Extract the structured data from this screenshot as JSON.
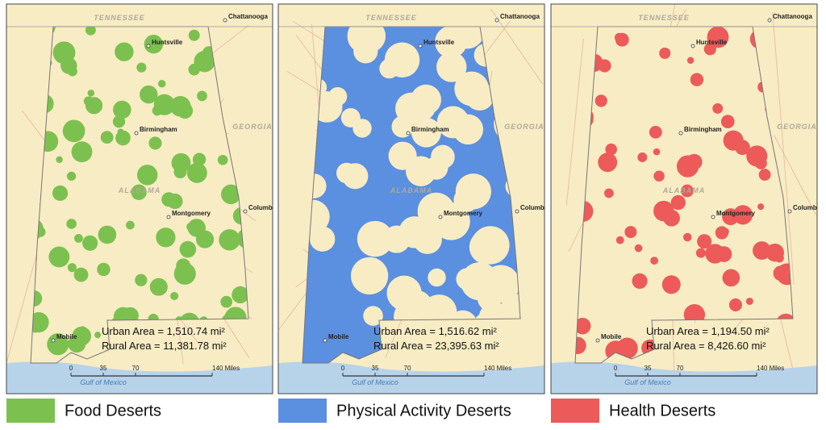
{
  "panels": [
    {
      "color": "#7cc14f",
      "legend": "Food Deserts",
      "urban": "Urban Area = 1,510.74 mi²",
      "rural": "Rural Area = 11,381.78 mi²"
    },
    {
      "color": "#5b8fe0",
      "legend": "Physical Activity Deserts",
      "urban": "Urban Area = 1,516.62 mi²",
      "rural": "Rural Area = 23,395.63 mi²"
    },
    {
      "color": "#ec5a5a",
      "legend": "Health Deserts",
      "urban": "Urban Area = 1,194.50 mi²",
      "rural": "Rural Area = 8,426.60 mi²"
    }
  ],
  "map_labels": {
    "states": [
      "TENNESSEE",
      "GEORGIA",
      "ALABAMA"
    ],
    "cities": [
      "Chattanooga",
      "Huntsville",
      "Birmingham",
      "Montgomery",
      "Columbus",
      "Mobile"
    ],
    "water": "Gulf of Mexico",
    "scale": [
      "0",
      "35",
      "70",
      "140 Miles"
    ]
  }
}
